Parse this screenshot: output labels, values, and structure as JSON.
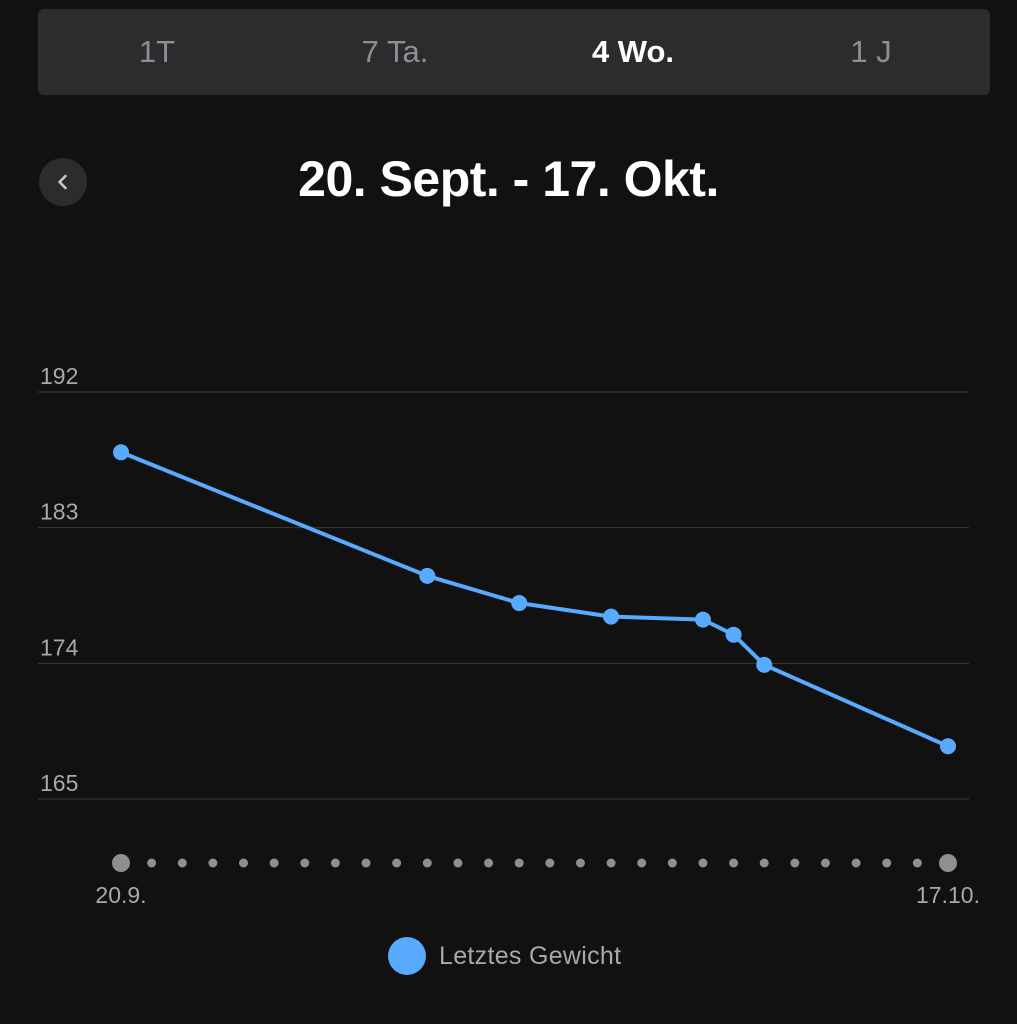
{
  "tabs": [
    {
      "label": "1T",
      "active": false
    },
    {
      "label": "7 Ta.",
      "active": false
    },
    {
      "label": "4 Wo.",
      "active": true
    },
    {
      "label": "1 J",
      "active": false
    }
  ],
  "header": {
    "back_icon": "chevron-left-icon",
    "title": "20. Sept. - 17. Okt."
  },
  "legend": {
    "label": "Letztes Gewicht",
    "color": "#58aafe"
  },
  "colors": {
    "line": "#58aafe",
    "grid": "#3a3a3c",
    "tick_text": "#a8a8ad",
    "axis_dot": "#8e8e93"
  },
  "chart_data": {
    "type": "line",
    "title": "",
    "xlabel": "",
    "ylabel": "",
    "ylim": [
      165,
      192
    ],
    "yticks": [
      192,
      183,
      174,
      165
    ],
    "x_range": [
      "2021-09-20",
      "2021-10-17"
    ],
    "x_tick_labels": [
      "20.9.",
      "17.10."
    ],
    "grid": true,
    "legend_position": "bottom-center",
    "series": [
      {
        "name": "Letztes Gewicht",
        "points": [
          {
            "x": "2021-09-20",
            "y": 188.0
          },
          {
            "x": "2021-09-30",
            "y": 179.8
          },
          {
            "x": "2021-10-03",
            "y": 178.0
          },
          {
            "x": "2021-10-06",
            "y": 177.1
          },
          {
            "x": "2021-10-09",
            "y": 176.9
          },
          {
            "x": "2021-10-10",
            "y": 175.9
          },
          {
            "x": "2021-10-11",
            "y": 173.9
          },
          {
            "x": "2021-10-17",
            "y": 168.5
          }
        ]
      }
    ]
  }
}
